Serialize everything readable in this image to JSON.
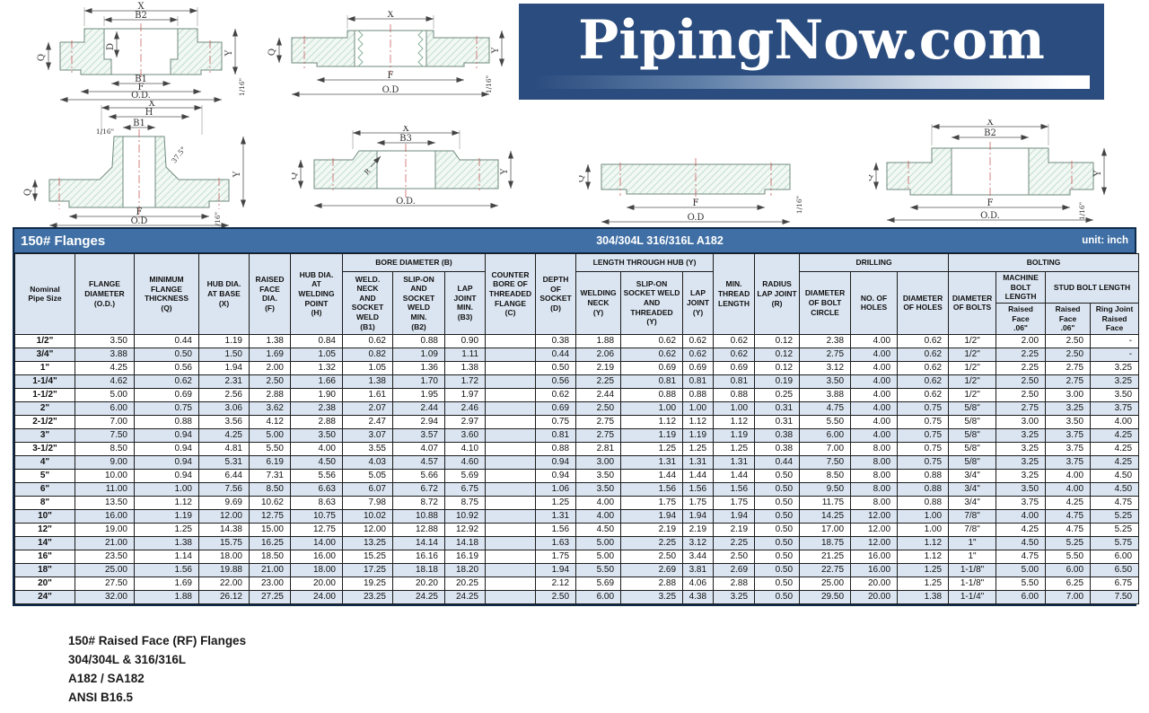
{
  "logo": {
    "text": "PipingNow.com"
  },
  "dims": {
    "x": "X",
    "h": "H",
    "b1": "B1",
    "b2": "B2",
    "b3": "B3",
    "d": "D",
    "q": "Q",
    "f": "F",
    "od": "O.D.",
    "od2": "O.D",
    "y": "Y",
    "sixteenth": "1/16\"",
    "angle": "37.5°",
    "r": "R"
  },
  "table": {
    "title": "150# Flanges",
    "material": "304/304L  316/316L  A182",
    "unit": "unit: inch",
    "headers": {
      "nominal": "Nominal\nPipe Size",
      "flange_od": "FLANGE\nDIAMETER\n(O.D.)",
      "min_thickness": "MINIMUM\nFLANGE\nTHICKNESS\n(Q)",
      "hub_base": "HUB DIA.\nAT BASE\n(X)",
      "raised_face": "RAISED\nFACE\nDIA.\n(F)",
      "hub_weld": "HUB DIA.\nAT\nWELDING\nPOINT\n(H)",
      "bore_group": "BORE DIAMETER (B)",
      "b1": "WELD.\nNECK\nAND\nSOCKET\nWELD\n(B1)",
      "b2": "SLIP-ON\nAND\nSOCKET\nWELD\nMIN.\n(B2)",
      "b3": "LAP\nJOINT\nMIN.\n(B3)",
      "counter_bore": "COUNTER\nBORE OF\nTHREADED\nFLANGE\n(C)",
      "depth_socket": "DEPTH\nOF\nSOCKET\n(D)",
      "length_group": "LENGTH THROUGH HUB (Y)",
      "welding_neck": "WELDING\nNECK\n(Y)",
      "slip_on_y": "SLIP-ON\nSOCKET WELD\nAND\nTHREADED\n(Y)",
      "lap_joint_y": "LAP\nJOINT\n(Y)",
      "min_thread": "MIN.\nTHREAD\nLENGTH",
      "radius_lap": "RADIUS\nLAP JOINT\n(R)",
      "drilling_group": "DRILLING",
      "bolt_circle": "DIAMETER\nOF BOLT\nCIRCLE",
      "no_holes": "NO. OF\nHOLES",
      "dia_holes": "DIAMETER\nOF HOLES",
      "bolting_group": "BOLTING",
      "dia_bolts": "DIAMETER\nOF BOLTS",
      "machine_bolt": "MACHINE\nBOLT\nLENGTH",
      "stud_bolt": "STUD BOLT LENGTH",
      "rf_machine": "Raised\nFace\n.06\"",
      "rf_stud": "Raised\nFace\n.06\"",
      "ring_joint": "Ring Joint\nRaised\nFace"
    },
    "rows": [
      [
        "1/2\"",
        "3.50",
        "0.44",
        "1.19",
        "1.38",
        "0.84",
        "0.62",
        "0.88",
        "0.90",
        "",
        "0.38",
        "1.88",
        "0.62",
        "0.62",
        "0.62",
        "0.12",
        "2.38",
        "4.00",
        "0.62",
        "1/2\"",
        "2.00",
        "2.50",
        "-"
      ],
      [
        "3/4\"",
        "3.88",
        "0.50",
        "1.50",
        "1.69",
        "1.05",
        "0.82",
        "1.09",
        "1.11",
        "",
        "0.44",
        "2.06",
        "0.62",
        "0.62",
        "0.62",
        "0.12",
        "2.75",
        "4.00",
        "0.62",
        "1/2\"",
        "2.25",
        "2.50",
        "-"
      ],
      [
        "1\"",
        "4.25",
        "0.56",
        "1.94",
        "2.00",
        "1.32",
        "1.05",
        "1.36",
        "1.38",
        "",
        "0.50",
        "2.19",
        "0.69",
        "0.69",
        "0.69",
        "0.12",
        "3.12",
        "4.00",
        "0.62",
        "1/2\"",
        "2.25",
        "2.75",
        "3.25"
      ],
      [
        "1-1/4\"",
        "4.62",
        "0.62",
        "2.31",
        "2.50",
        "1.66",
        "1.38",
        "1.70",
        "1.72",
        "",
        "0.56",
        "2.25",
        "0.81",
        "0.81",
        "0.81",
        "0.19",
        "3.50",
        "4.00",
        "0.62",
        "1/2\"",
        "2.50",
        "2.75",
        "3.25"
      ],
      [
        "1-1/2\"",
        "5.00",
        "0.69",
        "2.56",
        "2.88",
        "1.90",
        "1.61",
        "1.95",
        "1.97",
        "",
        "0.62",
        "2.44",
        "0.88",
        "0.88",
        "0.88",
        "0.25",
        "3.88",
        "4.00",
        "0.62",
        "1/2\"",
        "2.50",
        "3.00",
        "3.50"
      ],
      [
        "2\"",
        "6.00",
        "0.75",
        "3.06",
        "3.62",
        "2.38",
        "2.07",
        "2.44",
        "2.46",
        "",
        "0.69",
        "2.50",
        "1.00",
        "1.00",
        "1.00",
        "0.31",
        "4.75",
        "4.00",
        "0.75",
        "5/8\"",
        "2.75",
        "3.25",
        "3.75"
      ],
      [
        "2-1/2\"",
        "7.00",
        "0.88",
        "3.56",
        "4.12",
        "2.88",
        "2.47",
        "2.94",
        "2.97",
        "",
        "0.75",
        "2.75",
        "1.12",
        "1.12",
        "1.12",
        "0.31",
        "5.50",
        "4.00",
        "0.75",
        "5/8\"",
        "3.00",
        "3.50",
        "4.00"
      ],
      [
        "3\"",
        "7.50",
        "0.94",
        "4.25",
        "5.00",
        "3.50",
        "3.07",
        "3.57",
        "3.60",
        "",
        "0.81",
        "2.75",
        "1.19",
        "1.19",
        "1.19",
        "0.38",
        "6.00",
        "4.00",
        "0.75",
        "5/8\"",
        "3.25",
        "3.75",
        "4.25"
      ],
      [
        "3-1/2\"",
        "8.50",
        "0.94",
        "4.81",
        "5.50",
        "4.00",
        "3.55",
        "4.07",
        "4.10",
        "",
        "0.88",
        "2.81",
        "1.25",
        "1.25",
        "1.25",
        "0.38",
        "7.00",
        "8.00",
        "0.75",
        "5/8\"",
        "3.25",
        "3.75",
        "4.25"
      ],
      [
        "4\"",
        "9.00",
        "0.94",
        "5.31",
        "6.19",
        "4.50",
        "4.03",
        "4.57",
        "4.60",
        "",
        "0.94",
        "3.00",
        "1.31",
        "1.31",
        "1.31",
        "0.44",
        "7.50",
        "8.00",
        "0.75",
        "5/8\"",
        "3.25",
        "3.75",
        "4.25"
      ],
      [
        "5\"",
        "10.00",
        "0.94",
        "6.44",
        "7.31",
        "5.56",
        "5.05",
        "5.66",
        "5.69",
        "",
        "0.94",
        "3.50",
        "1.44",
        "1.44",
        "1.44",
        "0.50",
        "8.50",
        "8.00",
        "0.88",
        "3/4\"",
        "3.25",
        "4.00",
        "4.50"
      ],
      [
        "6\"",
        "11.00",
        "1.00",
        "7.56",
        "8.50",
        "6.63",
        "6.07",
        "6.72",
        "6.75",
        "",
        "1.06",
        "3.50",
        "1.56",
        "1.56",
        "1.56",
        "0.50",
        "9.50",
        "8.00",
        "0.88",
        "3/4\"",
        "3.50",
        "4.00",
        "4.50"
      ],
      [
        "8\"",
        "13.50",
        "1.12",
        "9.69",
        "10.62",
        "8.63",
        "7.98",
        "8.72",
        "8.75",
        "",
        "1.25",
        "4.00",
        "1.75",
        "1.75",
        "1.75",
        "0.50",
        "11.75",
        "8.00",
        "0.88",
        "3/4\"",
        "3.75",
        "4.25",
        "4.75"
      ],
      [
        "10\"",
        "16.00",
        "1.19",
        "12.00",
        "12.75",
        "10.75",
        "10.02",
        "10.88",
        "10.92",
        "",
        "1.31",
        "4.00",
        "1.94",
        "1.94",
        "1.94",
        "0.50",
        "14.25",
        "12.00",
        "1.00",
        "7/8\"",
        "4.00",
        "4.75",
        "5.25"
      ],
      [
        "12\"",
        "19.00",
        "1.25",
        "14.38",
        "15.00",
        "12.75",
        "12.00",
        "12.88",
        "12.92",
        "",
        "1.56",
        "4.50",
        "2.19",
        "2.19",
        "2.19",
        "0.50",
        "17.00",
        "12.00",
        "1.00",
        "7/8\"",
        "4.25",
        "4.75",
        "5.25"
      ],
      [
        "14\"",
        "21.00",
        "1.38",
        "15.75",
        "16.25",
        "14.00",
        "13.25",
        "14.14",
        "14.18",
        "",
        "1.63",
        "5.00",
        "2.25",
        "3.12",
        "2.25",
        "0.50",
        "18.75",
        "12.00",
        "1.12",
        "1\"",
        "4.50",
        "5.25",
        "5.75"
      ],
      [
        "16\"",
        "23.50",
        "1.14",
        "18.00",
        "18.50",
        "16.00",
        "15.25",
        "16.16",
        "16.19",
        "",
        "1.75",
        "5.00",
        "2.50",
        "3.44",
        "2.50",
        "0.50",
        "21.25",
        "16.00",
        "1.12",
        "1\"",
        "4.75",
        "5.50",
        "6.00"
      ],
      [
        "18\"",
        "25.00",
        "1.56",
        "19.88",
        "21.00",
        "18.00",
        "17.25",
        "18.18",
        "18.20",
        "",
        "1.94",
        "5.50",
        "2.69",
        "3.81",
        "2.69",
        "0.50",
        "22.75",
        "16.00",
        "1.25",
        "1-1/8\"",
        "5.00",
        "6.00",
        "6.50"
      ],
      [
        "20\"",
        "27.50",
        "1.69",
        "22.00",
        "23.00",
        "20.00",
        "19.25",
        "20.20",
        "20.25",
        "",
        "2.12",
        "5.69",
        "2.88",
        "4.06",
        "2.88",
        "0.50",
        "25.00",
        "20.00",
        "1.25",
        "1-1/8\"",
        "5.50",
        "6.25",
        "6.75"
      ],
      [
        "24\"",
        "32.00",
        "1.88",
        "26.12",
        "27.25",
        "24.00",
        "23.25",
        "24.25",
        "24.25",
        "",
        "2.50",
        "6.00",
        "3.25",
        "4.38",
        "3.25",
        "0.50",
        "29.50",
        "20.00",
        "1.38",
        "1-1/4\"",
        "6.00",
        "7.00",
        "7.50"
      ]
    ]
  },
  "footer": {
    "line1": "150# Raised Face (RF) Flanges",
    "line2": "304/304L & 316/316L",
    "line3": "A182 / SA182",
    "line4": "ANSI B16.5"
  },
  "colors": {
    "logo_background": "#2b4c7e",
    "title_bar": "#3f6fa5",
    "header_fill": "#dbe5f1",
    "row_stripe": "#dbe5f1",
    "hatch": "#a9d0bd",
    "centerline_red": "#c44b4b"
  }
}
